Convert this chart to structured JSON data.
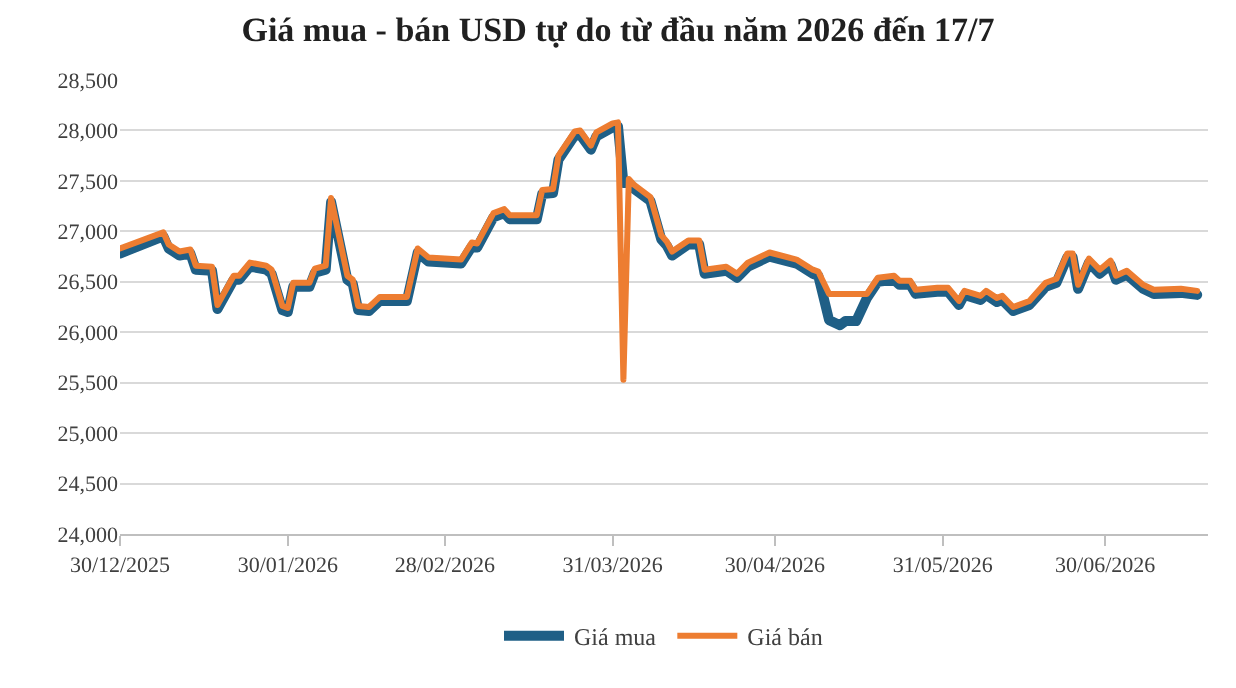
{
  "chart_data": {
    "type": "line",
    "title": "Giá mua - bán USD tự do từ đầu năm 2026 đến 17/7",
    "x": [
      "2025-12-30",
      "2026-01-07",
      "2026-01-08",
      "2026-01-10",
      "2026-01-12",
      "2026-01-13",
      "2026-01-16",
      "2026-01-17",
      "2026-01-20",
      "2026-01-21",
      "2026-01-23",
      "2026-01-26",
      "2026-01-27",
      "2026-01-29",
      "2026-01-30",
      "2026-01-31",
      "2026-02-03",
      "2026-02-04",
      "2026-02-06",
      "2026-02-07",
      "2026-02-10",
      "2026-02-11",
      "2026-02-12",
      "2026-02-14",
      "2026-02-16",
      "2026-02-21",
      "2026-02-23",
      "2026-02-25",
      "2026-03-03",
      "2026-03-05",
      "2026-03-06",
      "2026-03-09",
      "2026-03-11",
      "2026-03-12",
      "2026-03-17",
      "2026-03-18",
      "2026-03-20",
      "2026-03-21",
      "2026-03-24",
      "2026-03-25",
      "2026-03-27",
      "2026-03-28",
      "2026-03-31",
      "2026-04-01",
      "2026-04-02",
      "2026-04-03",
      "2026-04-04",
      "2026-04-07",
      "2026-04-09",
      "2026-04-10",
      "2026-04-11",
      "2026-04-14",
      "2026-04-16",
      "2026-04-17",
      "2026-04-21",
      "2026-04-23",
      "2026-04-25",
      "2026-04-29",
      "2026-05-04",
      "2026-05-07",
      "2026-05-08",
      "2026-05-10",
      "2026-05-12",
      "2026-05-13",
      "2026-05-15",
      "2026-05-17",
      "2026-05-19",
      "2026-05-22",
      "2026-05-23",
      "2026-05-25",
      "2026-05-26",
      "2026-05-30",
      "2026-06-01",
      "2026-06-03",
      "2026-06-04",
      "2026-06-07",
      "2026-06-08",
      "2026-06-10",
      "2026-06-11",
      "2026-06-13",
      "2026-06-16",
      "2026-06-19",
      "2026-06-21",
      "2026-06-23",
      "2026-06-24",
      "2026-06-25",
      "2026-06-27",
      "2026-06-29",
      "2026-07-01",
      "2026-07-02",
      "2026-07-04",
      "2026-07-07",
      "2026-07-09",
      "2026-07-14",
      "2026-07-17"
    ],
    "series": [
      {
        "name": "Giá mua",
        "color": "#1f5f86",
        "values": [
          26780,
          26950,
          26830,
          26760,
          26780,
          26620,
          26610,
          26230,
          26520,
          26520,
          26650,
          26620,
          26580,
          26220,
          26200,
          26450,
          26450,
          26590,
          26620,
          27290,
          26520,
          26480,
          26220,
          26210,
          26310,
          26310,
          26790,
          26700,
          26680,
          26850,
          26840,
          27140,
          27180,
          27120,
          27120,
          27370,
          27380,
          27710,
          27950,
          27960,
          27810,
          27940,
          28030,
          28040,
          27480,
          27480,
          27420,
          27300,
          26920,
          26860,
          26760,
          26870,
          26870,
          26580,
          26610,
          26540,
          26650,
          26750,
          26680,
          26580,
          26560,
          26120,
          26070,
          26110,
          26110,
          26340,
          26500,
          26520,
          26470,
          26470,
          26380,
          26400,
          26400,
          26270,
          26370,
          26320,
          26370,
          26300,
          26320,
          26210,
          26270,
          26450,
          26490,
          26740,
          26740,
          26430,
          26690,
          26580,
          26670,
          26520,
          26570,
          26430,
          26380,
          26390,
          26370
        ]
      },
      {
        "name": "Giá bán",
        "color": "#ed7d31",
        "values": [
          26830,
          26990,
          26870,
          26800,
          26820,
          26660,
          26650,
          26270,
          26560,
          26560,
          26690,
          26660,
          26620,
          26260,
          26240,
          26490,
          26490,
          26630,
          26660,
          27330,
          26560,
          26520,
          26260,
          26250,
          26350,
          26350,
          26830,
          26740,
          26720,
          26890,
          26880,
          27180,
          27220,
          27160,
          27160,
          27410,
          27420,
          27750,
          27990,
          28000,
          27850,
          27980,
          28070,
          28080,
          25530,
          27520,
          27460,
          27340,
          26960,
          26900,
          26800,
          26910,
          26910,
          26620,
          26650,
          26580,
          26690,
          26790,
          26720,
          26620,
          26600,
          26380,
          26380,
          26380,
          26380,
          26380,
          26540,
          26560,
          26510,
          26510,
          26420,
          26440,
          26440,
          26310,
          26410,
          26360,
          26410,
          26340,
          26360,
          26250,
          26310,
          26490,
          26530,
          26780,
          26780,
          26470,
          26730,
          26620,
          26710,
          26560,
          26610,
          26470,
          26420,
          26430,
          26410
        ]
      }
    ],
    "xlim": [
      "2025-12-30",
      "2026-07-19"
    ],
    "xticks": [
      {
        "value": "2025-12-30",
        "label": "30/12/2025"
      },
      {
        "value": "2026-01-30",
        "label": "30/01/2026"
      },
      {
        "value": "2026-02-28",
        "label": "28/02/2026"
      },
      {
        "value": "2026-03-31",
        "label": "31/03/2026"
      },
      {
        "value": "2026-04-30",
        "label": "30/04/2026"
      },
      {
        "value": "2026-05-31",
        "label": "31/05/2026"
      },
      {
        "value": "2026-06-30",
        "label": "30/06/2026"
      }
    ],
    "ylim": [
      24000,
      28500
    ],
    "yticks": [
      {
        "value": 24000,
        "label": "24,000"
      },
      {
        "value": 24500,
        "label": "24,500"
      },
      {
        "value": 25000,
        "label": "25,000"
      },
      {
        "value": 25500,
        "label": "25,500"
      },
      {
        "value": 26000,
        "label": "26,000"
      },
      {
        "value": 26500,
        "label": "26,500"
      },
      {
        "value": 27000,
        "label": "27,000"
      },
      {
        "value": 27500,
        "label": "27,500"
      },
      {
        "value": 28000,
        "label": "28,000"
      },
      {
        "value": 28500,
        "label": "28,500"
      }
    ],
    "grid": "y",
    "legend": "bottom",
    "marker": "none",
    "line_style": "solid"
  }
}
